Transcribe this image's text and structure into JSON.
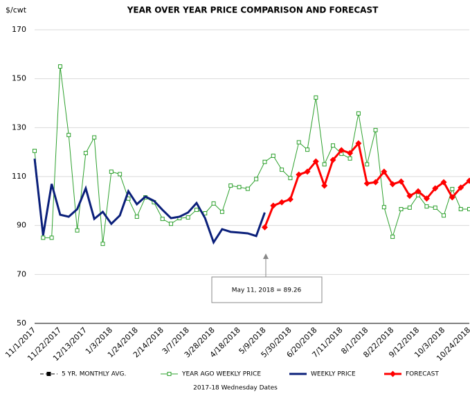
{
  "chart_data": {
    "type": "line",
    "title": "YEAR OVER YEAR PRICE COMPARISON AND FORECAST",
    "y_label": "$/cwt",
    "x_label": "2017-18 Wednesday Dates",
    "annotation": "May 11, 2018  =  89.26",
    "categories": [
      "11/1/2017",
      null,
      null,
      "11/22/2017",
      null,
      null,
      "12/13/2017",
      null,
      null,
      "1/3/2018",
      null,
      null,
      "1/24/2018",
      null,
      null,
      "2/14/2018",
      null,
      null,
      "3/7/2018",
      null,
      null,
      "3/28/2018",
      null,
      null,
      "4/18/2018",
      null,
      null,
      "5/9/2018",
      null,
      null,
      "5/30/2018",
      null,
      null,
      "6/20/2018",
      null,
      null,
      "7/11/2018",
      null,
      null,
      "8/1/2018",
      null,
      null,
      "8/22/2018",
      null,
      null,
      "9/12/2018",
      null,
      null,
      "10/3/2018",
      null,
      null,
      "10/24/2018"
    ],
    "ylim": [
      50,
      170
    ],
    "yticks": [
      50,
      70,
      90,
      110,
      130,
      150,
      170
    ],
    "grid": true,
    "legend": "bottom",
    "series": [
      {
        "name": "5 YR. MONTHLY AVG.",
        "color": "#000000",
        "marker": "square",
        "dashed": true,
        "values": [
          null,
          null,
          null,
          null,
          null,
          null,
          null,
          null,
          null,
          null,
          null,
          null,
          null,
          null,
          null,
          null,
          null,
          null,
          null,
          null,
          null,
          null,
          null,
          null,
          null,
          null,
          null,
          null,
          null,
          null,
          null,
          null,
          null,
          null,
          null,
          null,
          null,
          null,
          null,
          null,
          null,
          null,
          null,
          null,
          null,
          null,
          null,
          null,
          null,
          null,
          null,
          null
        ]
      },
      {
        "name": "YEAR AGO WEEKLY PRICE",
        "color": "#2ca02c",
        "marker": "square-open",
        "values": [
          120.5,
          85,
          85,
          155,
          127,
          88,
          119.6,
          126,
          82.5,
          112,
          111,
          101,
          93.6,
          101.5,
          99.5,
          92.7,
          90.7,
          93,
          93.3,
          96.4,
          95,
          99,
          95.6,
          106.3,
          105.7,
          105,
          109,
          116,
          118.5,
          112.8,
          109.4,
          124,
          121,
          142.3,
          115,
          122.7,
          119.3,
          117.4,
          135.8,
          115,
          129,
          97.5,
          85.4,
          96.7,
          97.3,
          102.4,
          97.8,
          97.3,
          94.1,
          104.9,
          96.7,
          96.7
        ]
      },
      {
        "name": "WEEKLY PRICE",
        "color": "#0a1f7a",
        "marker": "none",
        "values": [
          117.3,
          86,
          107,
          94.4,
          93.6,
          96.7,
          105.2,
          92.7,
          95.6,
          90.7,
          94.1,
          104,
          98.7,
          101.8,
          100.1,
          96.4,
          93,
          93.6,
          95.3,
          99.2,
          93,
          83.1,
          88.5,
          87.4,
          87.1,
          86.8,
          85.7,
          95.3,
          null,
          null,
          null,
          null,
          null,
          null,
          null,
          null,
          null,
          null,
          null,
          null,
          null,
          null,
          null,
          null,
          null,
          null,
          null,
          null,
          null,
          null,
          null,
          null
        ]
      },
      {
        "name": "FORECAST",
        "color": "#ff0000",
        "marker": "diamond",
        "values": [
          null,
          null,
          null,
          null,
          null,
          null,
          null,
          null,
          null,
          null,
          null,
          null,
          null,
          null,
          null,
          null,
          null,
          null,
          null,
          null,
          null,
          null,
          null,
          null,
          null,
          null,
          null,
          89.26,
          98.1,
          99.5,
          100.7,
          110.8,
          112,
          116.2,
          106.3,
          116.8,
          120.8,
          119.6,
          123.6,
          107.2,
          107.7,
          112,
          106.9,
          108,
          102.1,
          104,
          101,
          105.2,
          107.7,
          101.5,
          105.5,
          108.3
        ]
      }
    ]
  }
}
